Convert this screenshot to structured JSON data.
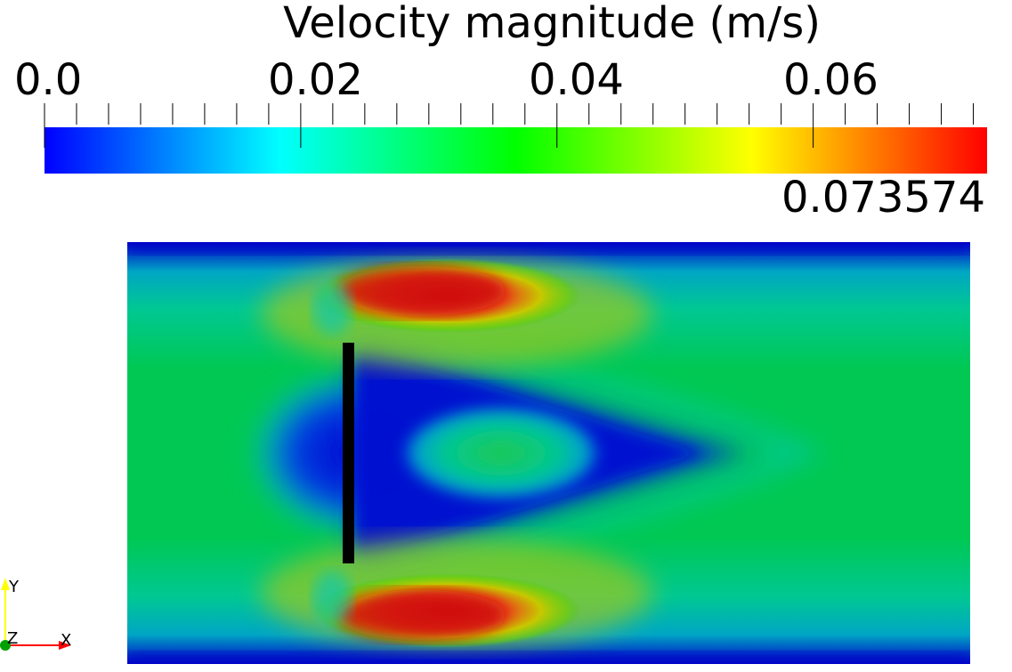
{
  "colorbar": {
    "title": "Velocity magnitude (m/s)",
    "min_label": "0.0",
    "tick_labels": [
      "0.02",
      "0.04",
      "0.06"
    ],
    "max_label": "0.073574",
    "range": [
      0.0,
      0.073574
    ],
    "colormap": [
      "#0000ff",
      "#00ffff",
      "#00ff00",
      "#ffff00",
      "#ff0000"
    ]
  },
  "plot": {
    "obstacle_color": "#000000",
    "background": "#ffffff"
  },
  "orientation_axes": {
    "x_label": "X",
    "y_label": "Y",
    "z_label": "Z",
    "x_color": "#ff0000",
    "y_color": "#ffff00",
    "z_color": "#00a000"
  }
}
